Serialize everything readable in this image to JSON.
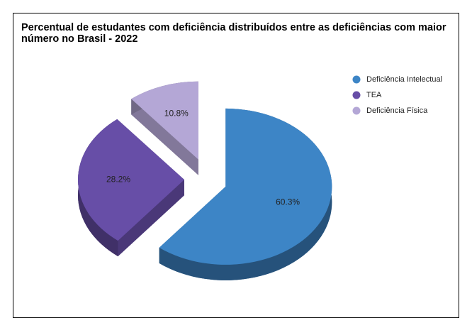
{
  "chart_data": {
    "type": "pie3d",
    "title": "Percentual de estudantes com deficiência distribuídos entre as deficiências com maior número no Brasil  - 2022",
    "categories": [
      "Deficiência Intelectual",
      "TEA",
      "Deficiência Física"
    ],
    "values": [
      60.3,
      28.2,
      10.8
    ],
    "value_labels": [
      "60.3%",
      "28.2%",
      "10.8%"
    ],
    "colors": [
      "#3d85c6",
      "#674ea7",
      "#b4a7d6"
    ],
    "legend": "right"
  }
}
